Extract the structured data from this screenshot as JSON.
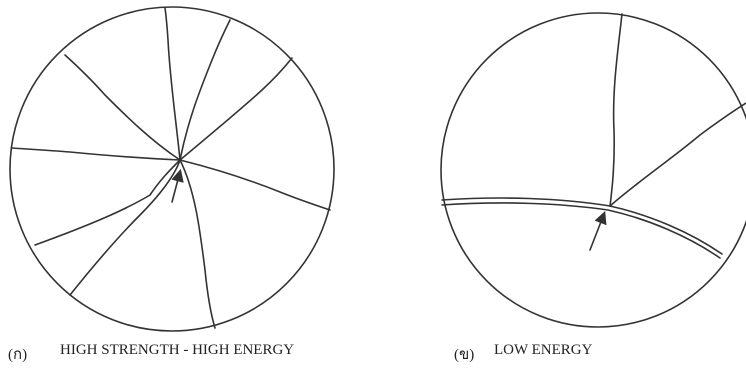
{
  "left": {
    "tag": "(ก)",
    "caption": "HIGH STRENGTH - HIGH ENERGY"
  },
  "right": {
    "tag": "(ข)",
    "caption": "LOW ENERGY"
  }
}
